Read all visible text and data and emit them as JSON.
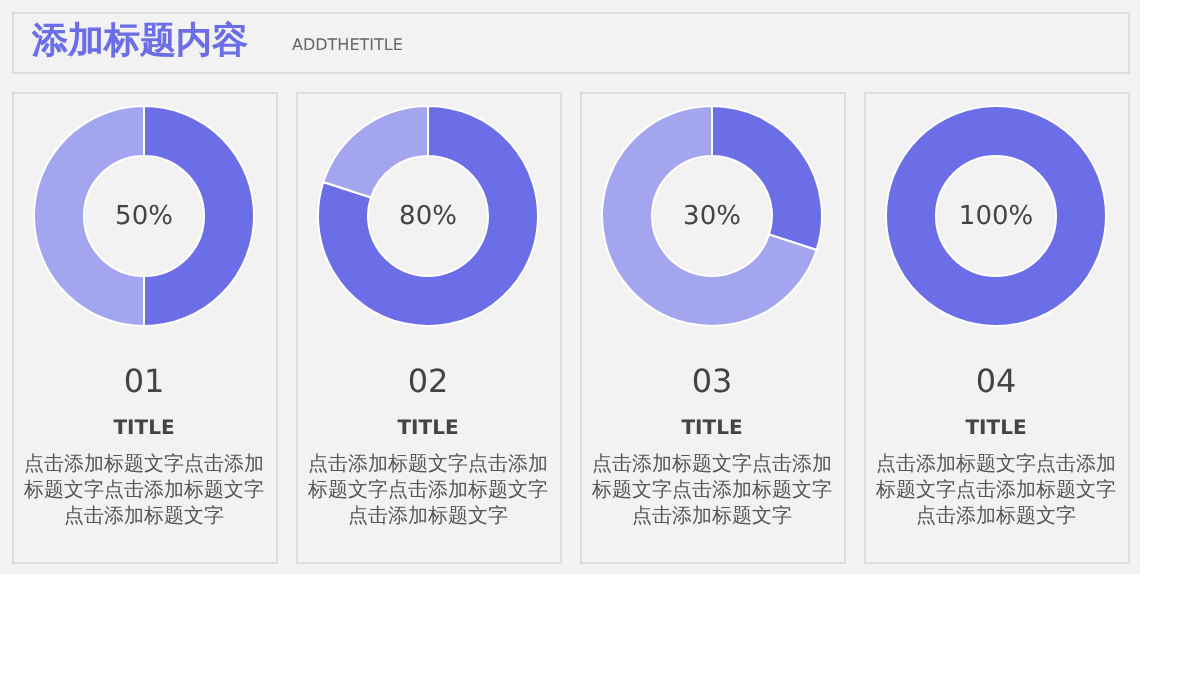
{
  "chart_data": [
    {
      "type": "other",
      "title": "添加标题内容",
      "subtitle": "ADDTHETITLE"
    },
    {
      "type": "donut",
      "title": "50%",
      "subtitle": "01",
      "categories": [
        null,
        null
      ],
      "values": [
        50,
        50
      ],
      "colors": [
        "#6b6ee6",
        "#a3a5ee"
      ],
      "annotations": [
        "TITLE",
        "点击添加标题文字点击添加标题文字点击添加标题文字点击添加标题文字"
      ]
    },
    {
      "type": "donut",
      "title": "80%",
      "subtitle": "02",
      "categories": [
        null,
        null
      ],
      "values": [
        80,
        20
      ],
      "colors": [
        "#6b6ee6",
        "#a3a5ee"
      ],
      "annotations": [
        "TITLE",
        "点击添加标题文字点击添加标题文字点击添加标题文字点击添加标题文字"
      ]
    },
    {
      "type": "donut",
      "title": "30%",
      "subtitle": "03",
      "categories": [
        null,
        null
      ],
      "values": [
        30,
        70
      ],
      "colors": [
        "#6b6ee6",
        "#a3a5ee"
      ],
      "annotations": [
        "TITLE",
        "点击添加标题文字点击添加标题文字点击添加标题文字点击添加标题文字"
      ]
    },
    {
      "type": "donut",
      "title": "100%",
      "subtitle": "04",
      "categories": [
        null
      ],
      "values": [
        100
      ],
      "colors": [
        "#6b6ee6"
      ],
      "annotations": [
        "TITLE",
        "点击添加标题文字点击添加标题文字点击添加标题文字点击添加标题文字"
      ]
    }
  ]
}
